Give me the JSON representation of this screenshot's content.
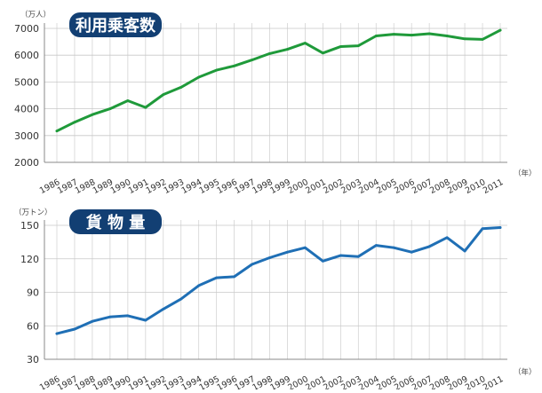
{
  "chart_data": [
    {
      "type": "line",
      "title": "利用乗客数",
      "unit": "（万人）",
      "xunit": "（年）",
      "color": "#1f9a3a",
      "badge_color": "#123f73",
      "x": [
        "1986",
        "1987",
        "1988",
        "1989",
        "1990",
        "1991",
        "1992",
        "1993",
        "1994",
        "1995",
        "1996",
        "1997",
        "1998",
        "1999",
        "2000",
        "2001",
        "2002",
        "2003",
        "2004",
        "2005",
        "2006",
        "2007",
        "2008",
        "2009",
        "2010",
        "2011"
      ],
      "values": [
        3170,
        3500,
        3780,
        4000,
        4300,
        4050,
        4530,
        4800,
        5180,
        5440,
        5600,
        5820,
        6060,
        6220,
        6450,
        6080,
        6320,
        6350,
        6720,
        6780,
        6750,
        6800,
        6720,
        6610,
        6590,
        6930
      ],
      "ylim": [
        2000,
        7000
      ],
      "yticks": [
        2000,
        3000,
        4000,
        5000,
        6000,
        7000
      ],
      "grid": true
    },
    {
      "type": "line",
      "title": "貨 物 量",
      "unit": "（万トン）",
      "xunit": "（年）",
      "color": "#1f6fb5",
      "badge_color": "#123f73",
      "x": [
        "1986",
        "1987",
        "1988",
        "1989",
        "1990",
        "1991",
        "1992",
        "1993",
        "1994",
        "1995",
        "1996",
        "1997",
        "1998",
        "1999",
        "2000",
        "2001",
        "2002",
        "2003",
        "2004",
        "2005",
        "2006",
        "2007",
        "2008",
        "2009",
        "2010",
        "2011"
      ],
      "values": [
        53,
        57,
        64,
        68,
        69,
        65,
        75,
        84,
        96,
        103,
        104,
        115,
        121,
        126,
        130,
        118,
        123,
        122,
        132,
        130,
        126,
        131,
        139,
        127,
        147,
        148
      ],
      "ylim": [
        30,
        150
      ],
      "yticks": [
        30,
        60,
        90,
        120,
        150
      ],
      "grid": true
    }
  ]
}
